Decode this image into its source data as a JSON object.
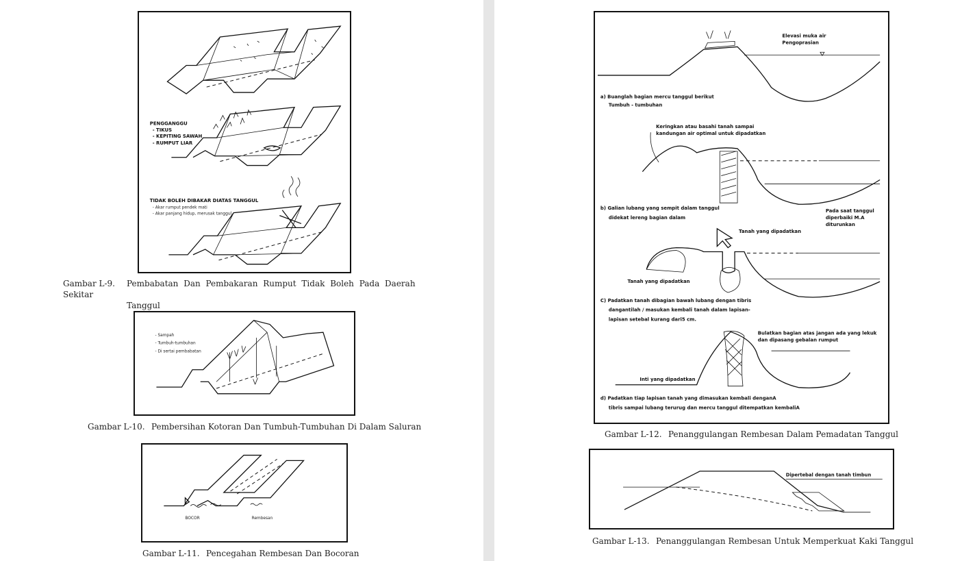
{
  "figures": {
    "l9": {
      "caption_number": "Gambar L-9.",
      "caption_text": "Pembabatan Dan Pembakaran Rumput Tidak Boleh Pada Daerah Sekitar",
      "caption_text2": "Tanggul",
      "pest_title": "PENGGANGGU",
      "pests": [
        "- TIKUS",
        "- KEPITING SAWAH",
        "- RUMPUT LIAR"
      ],
      "burn_title": "TIDAK BOLEH DIBAKAR DIATAS TANGGUL",
      "burn_items": [
        "- Akar rumput pendek mati",
        "- Akar panjang hidup, merusak tanggul"
      ]
    },
    "l10": {
      "caption_number": "Gambar  L-10.",
      "caption_text": "Pembersihan Kotoran Dan Tumbuh-Tumbuhan Di Dalam Saluran",
      "items": [
        "- Sampah",
        "- Tumbuh-tumbuhan",
        "- Di sertai pembabatan"
      ]
    },
    "l11": {
      "caption_number": "Gambar  L-11.",
      "caption_text": "Pencegahan Rembesan Dan Bocoran",
      "label_bocor": "BOCOR",
      "label_rembesan": "Rembesan"
    },
    "l12": {
      "caption_number": "Gambar  L-12.",
      "caption_text": "Penanggulangan Rembesan Dalam Pemadatan Tanggul",
      "elevasi": [
        "Elevasi muka air",
        "Pengoprasian"
      ],
      "step_a": [
        "a)  Buanglah bagian mercu tanggul berikut",
        "Tumbuh - tumbuhan"
      ],
      "keringkan": [
        "Keringkan atau basahi tanah sampai",
        "kandungan air optimal untuk dipadatkan"
      ],
      "step_b": [
        "b)  Galian lubang yang sempit dalam tanggul",
        "didekat lereng bagian dalam"
      ],
      "pada_saat": [
        "Pada saat tanggul",
        "diperbaiki M.A",
        "diturunkan"
      ],
      "tanah_dipadatkan_top": "Tanah yang dipadatkan",
      "tanah_dipadatkan_left": "Tanah yang dipadatkan",
      "step_c": [
        "C)  Padatkan tanah dibagian bawah lubang dengan tibris",
        "dangantilah / masukan kembali tanah dalam lapisan-",
        "lapisan setebal kurang dari5 cm."
      ],
      "bulatkan": [
        "Bulatkan bagian atas jangan ada yang lekuk",
        "dan dipasang gebalan rumput"
      ],
      "inti": "Inti yang dipadatkan",
      "step_d": [
        "d)  Padatkan tiap lapisan tanah yang dimasukan kembali denganA",
        "tibris sampai lubang terurug dan mercu tanggul ditempatkan kembaliA"
      ]
    },
    "l13": {
      "caption_number": "Gambar  L-13.",
      "caption_text": "Penanggulangan Rembesan Untuk Memperkuat Kaki Tanggul",
      "label": "Dipertebal dengan tanah timbun"
    }
  }
}
